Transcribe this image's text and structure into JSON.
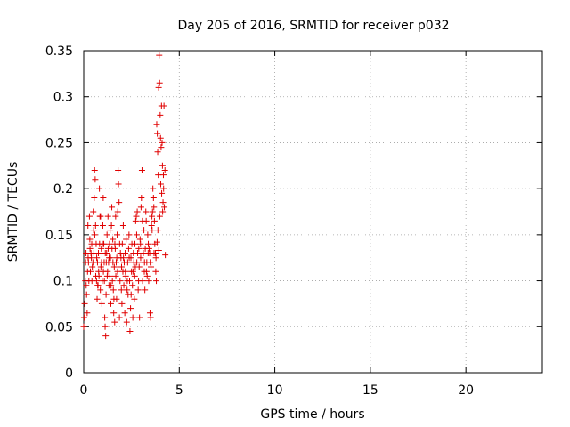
{
  "chart_data": {
    "type": "scatter",
    "title": "Day 205 of 2016, SRMTID for receiver p032",
    "xlabel": "GPS time / hours",
    "ylabel": "SRMTID / TECUs",
    "xlim": [
      0,
      24
    ],
    "ylim": [
      0,
      0.35
    ],
    "xticks": [
      0,
      5,
      10,
      15,
      20
    ],
    "xtick_labels": [
      "0",
      "5",
      "10",
      "15",
      "20"
    ],
    "yticks": [
      0,
      0.05,
      0.1,
      0.15,
      0.2,
      0.25,
      0.3,
      0.35
    ],
    "ytick_labels": [
      "0",
      "0.05",
      "0.1",
      "0.15",
      "0.2",
      "0.25",
      "0.3",
      "0.35"
    ],
    "grid": true,
    "marker": "+",
    "color": "#e00000",
    "series": [
      {
        "name": "SRMTID",
        "points": [
          [
            0.0,
            0.05
          ],
          [
            0.02,
            0.06
          ],
          [
            0.05,
            0.075
          ],
          [
            0.08,
            0.1
          ],
          [
            0.1,
            0.12
          ],
          [
            0.12,
            0.13
          ],
          [
            0.15,
            0.085
          ],
          [
            0.18,
            0.065
          ],
          [
            0.2,
            0.11
          ],
          [
            0.22,
            0.16
          ],
          [
            0.25,
            0.12
          ],
          [
            0.27,
            0.1
          ],
          [
            0.3,
            0.17
          ],
          [
            0.32,
            0.145
          ],
          [
            0.35,
            0.11
          ],
          [
            0.38,
            0.13
          ],
          [
            0.4,
            0.125
          ],
          [
            0.42,
            0.14
          ],
          [
            0.45,
            0.115
          ],
          [
            0.48,
            0.12
          ],
          [
            0.5,
            0.175
          ],
          [
            0.52,
            0.155
          ],
          [
            0.55,
            0.19
          ],
          [
            0.57,
            0.22
          ],
          [
            0.6,
            0.21
          ],
          [
            0.62,
            0.16
          ],
          [
            0.65,
            0.14
          ],
          [
            0.67,
            0.1
          ],
          [
            0.7,
            0.08
          ],
          [
            0.72,
            0.12
          ],
          [
            0.75,
            0.095
          ],
          [
            0.77,
            0.13
          ],
          [
            0.8,
            0.105
          ],
          [
            0.82,
            0.2
          ],
          [
            0.85,
            0.17
          ],
          [
            0.87,
            0.09
          ],
          [
            0.9,
            0.115
          ],
          [
            0.92,
            0.135
          ],
          [
            0.95,
            0.075
          ],
          [
            0.97,
            0.1
          ],
          [
            1.0,
            0.16
          ],
          [
            1.02,
            0.19
          ],
          [
            1.05,
            0.14
          ],
          [
            1.07,
            0.12
          ],
          [
            1.1,
            0.06
          ],
          [
            1.12,
            0.05
          ],
          [
            1.15,
            0.04
          ],
          [
            1.17,
            0.085
          ],
          [
            1.2,
            0.13
          ],
          [
            1.22,
            0.15
          ],
          [
            1.25,
            0.11
          ],
          [
            1.27,
            0.17
          ],
          [
            1.3,
            0.12
          ],
          [
            1.32,
            0.095
          ],
          [
            1.35,
            0.14
          ],
          [
            1.37,
            0.105
          ],
          [
            1.4,
            0.125
          ],
          [
            1.42,
            0.075
          ],
          [
            1.45,
            0.16
          ],
          [
            1.47,
            0.18
          ],
          [
            1.5,
            0.1
          ],
          [
            1.52,
            0.145
          ],
          [
            1.55,
            0.09
          ],
          [
            1.57,
            0.065
          ],
          [
            1.6,
            0.115
          ],
          [
            1.62,
            0.055
          ],
          [
            1.65,
            0.135
          ],
          [
            1.67,
            0.17
          ],
          [
            1.7,
            0.12
          ],
          [
            1.72,
            0.08
          ],
          [
            1.75,
            0.15
          ],
          [
            1.77,
            0.11
          ],
          [
            1.8,
            0.22
          ],
          [
            1.82,
            0.205
          ],
          [
            1.85,
            0.185
          ],
          [
            1.87,
            0.06
          ],
          [
            1.9,
            0.1
          ],
          [
            1.92,
            0.13
          ],
          [
            1.95,
            0.125
          ],
          [
            1.97,
            0.09
          ],
          [
            2.0,
            0.075
          ],
          [
            2.02,
            0.14
          ],
          [
            2.05,
            0.11
          ],
          [
            2.07,
            0.16
          ],
          [
            2.1,
            0.095
          ],
          [
            2.12,
            0.12
          ],
          [
            2.15,
            0.065
          ],
          [
            2.17,
            0.13
          ],
          [
            2.2,
            0.105
          ],
          [
            2.22,
            0.145
          ],
          [
            2.25,
            0.055
          ],
          [
            2.27,
            0.09
          ],
          [
            2.3,
            0.12
          ],
          [
            2.32,
            0.085
          ],
          [
            2.35,
            0.135
          ],
          [
            2.37,
            0.15
          ],
          [
            2.4,
            0.1
          ],
          [
            2.42,
            0.045
          ],
          [
            2.45,
            0.07
          ],
          [
            2.47,
            0.125
          ],
          [
            2.5,
            0.11
          ],
          [
            2.52,
            0.14
          ],
          [
            2.55,
            0.095
          ],
          [
            2.57,
            0.06
          ],
          [
            2.6,
            0.13
          ],
          [
            2.62,
            0.12
          ],
          [
            2.65,
            0.08
          ],
          [
            2.67,
            0.105
          ],
          [
            2.7,
            0.115
          ],
          [
            2.72,
            0.165
          ],
          [
            2.75,
            0.17
          ],
          [
            2.77,
            0.15
          ],
          [
            2.8,
            0.175
          ],
          [
            2.82,
            0.13
          ],
          [
            2.85,
            0.09
          ],
          [
            2.87,
            0.1
          ],
          [
            2.9,
            0.115
          ],
          [
            2.92,
            0.06
          ],
          [
            2.95,
            0.145
          ],
          [
            2.97,
            0.14
          ],
          [
            3.0,
            0.18
          ],
          [
            3.02,
            0.19
          ],
          [
            3.05,
            0.22
          ],
          [
            3.07,
            0.165
          ],
          [
            3.1,
            0.12
          ],
          [
            3.12,
            0.13
          ],
          [
            3.15,
            0.155
          ],
          [
            3.17,
            0.11
          ],
          [
            3.2,
            0.09
          ],
          [
            3.22,
            0.135
          ],
          [
            3.25,
            0.175
          ],
          [
            3.27,
            0.165
          ],
          [
            3.3,
            0.12
          ],
          [
            3.32,
            0.105
          ],
          [
            3.35,
            0.15
          ],
          [
            3.37,
            0.13
          ],
          [
            3.4,
            0.1
          ],
          [
            3.42,
            0.135
          ],
          [
            3.45,
            0.13
          ],
          [
            3.47,
            0.065
          ],
          [
            3.5,
            0.06
          ],
          [
            3.52,
            0.115
          ],
          [
            3.55,
            0.16
          ],
          [
            3.57,
            0.17
          ],
          [
            3.6,
            0.175
          ],
          [
            3.62,
            0.2
          ],
          [
            3.65,
            0.19
          ],
          [
            3.67,
            0.18
          ],
          [
            3.7,
            0.165
          ],
          [
            3.72,
            0.14
          ],
          [
            3.75,
            0.13
          ],
          [
            3.77,
            0.11
          ],
          [
            3.8,
            0.1
          ],
          [
            3.82,
            0.27
          ],
          [
            3.85,
            0.26
          ],
          [
            3.87,
            0.24
          ],
          [
            3.9,
            0.215
          ],
          [
            3.92,
            0.31
          ],
          [
            3.95,
            0.345
          ],
          [
            3.97,
            0.315
          ],
          [
            4.0,
            0.28
          ],
          [
            4.02,
            0.255
          ],
          [
            4.05,
            0.245
          ],
          [
            4.07,
            0.29
          ],
          [
            4.1,
            0.25
          ],
          [
            4.12,
            0.225
          ],
          [
            4.15,
            0.185
          ],
          [
            4.17,
            0.215
          ],
          [
            4.2,
            0.29
          ],
          [
            4.22,
            0.18
          ],
          [
            4.25,
            0.22
          ],
          [
            4.27,
            0.128
          ],
          [
            3.84,
            0.142
          ],
          [
            3.88,
            0.155
          ],
          [
            3.93,
            0.133
          ],
          [
            3.98,
            0.17
          ],
          [
            4.03,
            0.205
          ],
          [
            4.08,
            0.195
          ],
          [
            4.13,
            0.175
          ],
          [
            4.18,
            0.2
          ],
          [
            0.33,
            0.135
          ],
          [
            0.43,
            0.1
          ],
          [
            0.58,
            0.15
          ],
          [
            0.68,
            0.125
          ],
          [
            0.78,
            0.11
          ],
          [
            0.88,
            0.17
          ],
          [
            0.98,
            0.14
          ],
          [
            1.08,
            0.1
          ],
          [
            1.18,
            0.12
          ],
          [
            1.28,
            0.135
          ],
          [
            1.38,
            0.155
          ],
          [
            1.48,
            0.135
          ],
          [
            1.58,
            0.08
          ],
          [
            1.68,
            0.105
          ],
          [
            1.78,
            0.175
          ],
          [
            1.88,
            0.14
          ],
          [
            1.98,
            0.115
          ],
          [
            2.08,
            0.125
          ],
          [
            2.18,
            0.11
          ],
          [
            2.28,
            0.1
          ],
          [
            2.38,
            0.125
          ],
          [
            2.48,
            0.085
          ],
          [
            2.58,
            0.11
          ],
          [
            2.68,
            0.14
          ],
          [
            2.78,
            0.12
          ],
          [
            2.88,
            0.135
          ],
          [
            2.98,
            0.125
          ],
          [
            3.08,
            0.1
          ],
          [
            3.18,
            0.12
          ],
          [
            3.28,
            0.11
          ],
          [
            3.38,
            0.14
          ],
          [
            3.48,
            0.12
          ],
          [
            3.58,
            0.155
          ],
          [
            3.68,
            0.13
          ],
          [
            3.78,
            0.125
          ],
          [
            0.13,
            0.095
          ],
          [
            0.23,
            0.125
          ],
          [
            0.53,
            0.13
          ],
          [
            0.63,
            0.105
          ],
          [
            0.73,
            0.095
          ],
          [
            0.83,
            0.14
          ],
          [
            0.93,
            0.12
          ],
          [
            1.03,
            0.11
          ],
          [
            1.13,
            0.13
          ],
          [
            1.23,
            0.105
          ],
          [
            1.33,
            0.125
          ],
          [
            1.43,
            0.095
          ],
          [
            1.53,
            0.12
          ],
          [
            1.63,
            0.14
          ],
          [
            1.73,
            0.125
          ]
        ]
      }
    ]
  }
}
